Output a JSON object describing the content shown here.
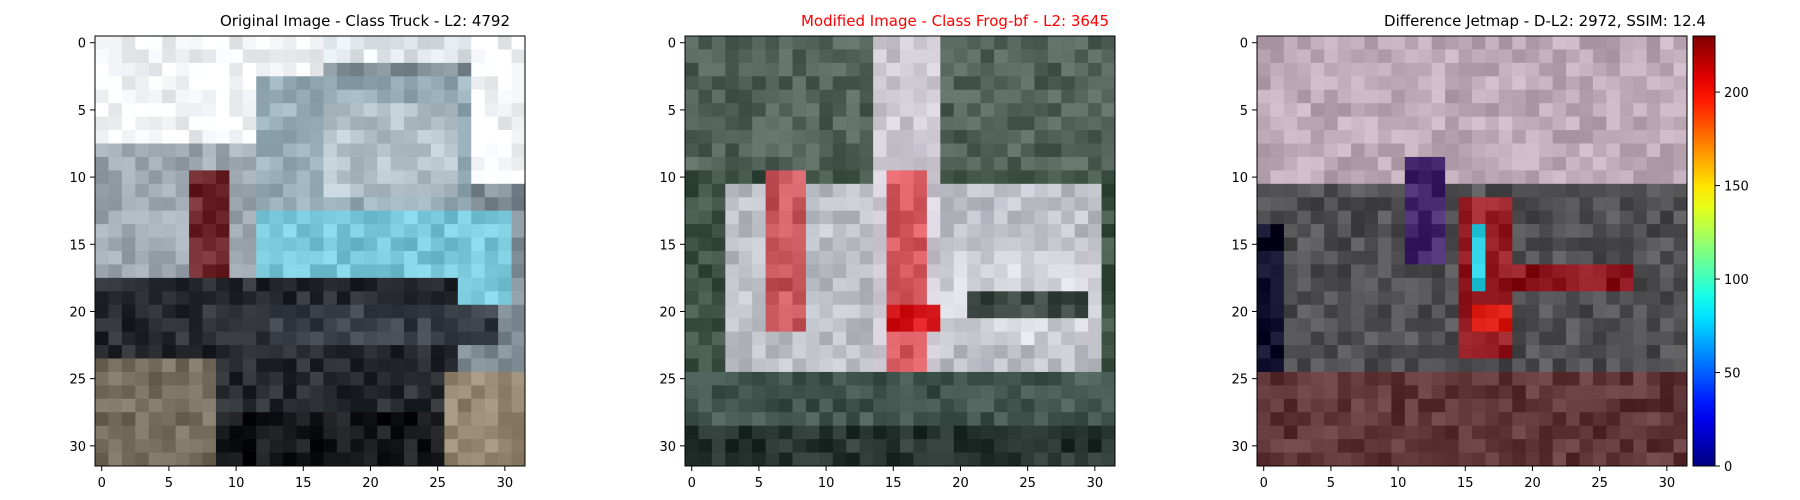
{
  "panels": [
    {
      "title": "Original Image - Class Truck - L2: 4792",
      "title_color": "#000000",
      "image_kind": "truck"
    },
    {
      "title": "Modified Image - Class Frog-bf - L2: 3645",
      "title_color": "#ff0000",
      "image_kind": "modified"
    },
    {
      "title": "Difference Jetmap - D-L2: 2972, SSIM: 12.4",
      "title_color": "#000000",
      "image_kind": "diff"
    }
  ],
  "chart_data": [
    {
      "type": "heatmap",
      "title": "Original Image - Class Truck - L2: 4792",
      "xlim": [
        -0.5,
        31.5
      ],
      "ylim": [
        31.5,
        -0.5
      ],
      "x_ticks": [
        0,
        5,
        10,
        15,
        20,
        25,
        30
      ],
      "y_ticks": [
        0,
        5,
        10,
        15,
        20,
        25,
        30
      ]
    },
    {
      "type": "heatmap",
      "title": "Modified Image - Class Frog-bf - L2: 3645",
      "xlim": [
        -0.5,
        31.5
      ],
      "ylim": [
        31.5,
        -0.5
      ],
      "x_ticks": [
        0,
        5,
        10,
        15,
        20,
        25,
        30
      ],
      "y_ticks": [
        0,
        5,
        10,
        15,
        20,
        25,
        30
      ]
    },
    {
      "type": "heatmap",
      "title": "Difference Jetmap - D-L2: 2972, SSIM: 12.4",
      "xlim": [
        -0.5,
        31.5
      ],
      "ylim": [
        31.5,
        -0.5
      ],
      "x_ticks": [
        0,
        5,
        10,
        15,
        20,
        25,
        30
      ],
      "y_ticks": [
        0,
        5,
        10,
        15,
        20,
        25,
        30
      ],
      "colorbar": {
        "colormap": "jet",
        "range": [
          0,
          230
        ],
        "ticks": [
          0,
          50,
          100,
          150,
          200
        ]
      }
    }
  ]
}
